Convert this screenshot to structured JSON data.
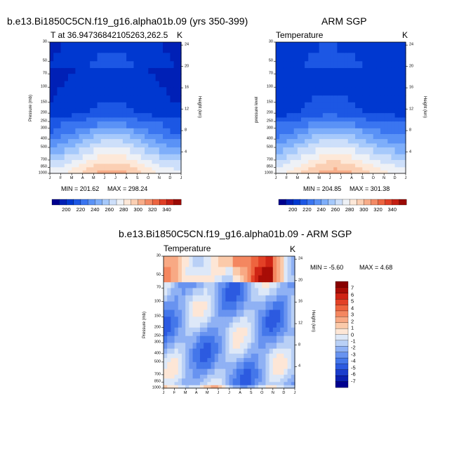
{
  "figure": {
    "title_top_left": "b.e13.Bi1850C5CN.f19_g16.alpha01b.09 (yrs 350-399)",
    "title_top_right": "ARM SGP",
    "title_bottom": "b.e13.Bi1850C5CN.f19_g16.alpha01b.09 - ARM SGP"
  },
  "colors": {
    "temp_scale": [
      "#00008e",
      "#0020b6",
      "#0038d0",
      "#1c57e4",
      "#3a75f0",
      "#5a92f6",
      "#7eaefa",
      "#a6c9fb",
      "#cddffa",
      "#eef1f6",
      "#fde8d8",
      "#fbcfb3",
      "#f8ad89",
      "#f38a65",
      "#ec6440",
      "#df3e25",
      "#c41e12",
      "#9a0a05"
    ],
    "diff_scale": [
      "#00008e",
      "#0a1fb0",
      "#1a3ccc",
      "#2c5ae0",
      "#4477ea",
      "#6893f0",
      "#8fb1f4",
      "#b9d0f6",
      "#dde8f8",
      "#fde6d6",
      "#fbcaaa",
      "#f8a984",
      "#f48760",
      "#ee643e",
      "#e34126",
      "#cf2414",
      "#a80d06",
      "#880000"
    ]
  },
  "chart_data": [
    {
      "type": "heatmap",
      "title": "T at 36.94736842105263,262.5",
      "units": "K",
      "ylabel": "Pressure (mb)",
      "ylabel_right": "Height (km)",
      "x_ticks": [
        "J",
        "F",
        "M",
        "A",
        "M",
        "J",
        "J",
        "A",
        "S",
        "O",
        "N",
        "D",
        "J"
      ],
      "y_ticks": [
        "30",
        "50",
        "70",
        "100",
        "150",
        "200",
        "250",
        "300",
        "400",
        "500",
        "700",
        "850",
        "1000"
      ],
      "y_ticks_right": [
        "24",
        "20",
        "16",
        "12",
        "8",
        "4"
      ],
      "min_label": "MIN = 201.62",
      "max_label": "MAX = 298.24",
      "colorbar_labels": [
        "200",
        "220",
        "240",
        "260",
        "280",
        "300",
        "320",
        "340"
      ]
    },
    {
      "type": "heatmap",
      "title": "Temperature",
      "units": "K",
      "ylabel": "pressure level",
      "ylabel_right": "Height (km)",
      "x_ticks": [
        "J",
        "F",
        "M",
        "A",
        "M",
        "J",
        "J",
        "A",
        "S",
        "O",
        "N",
        "D",
        "J"
      ],
      "y_ticks": [
        "30",
        "50",
        "70",
        "100",
        "150",
        "200",
        "250",
        "300",
        "400",
        "500",
        "700",
        "850",
        "1000"
      ],
      "y_ticks_right": [
        "24",
        "20",
        "16",
        "12",
        "8",
        "4"
      ],
      "min_label": "MIN = 204.85",
      "max_label": "MAX = 301.38",
      "colorbar_labels": [
        "200",
        "220",
        "240",
        "260",
        "280",
        "300",
        "320",
        "340"
      ]
    },
    {
      "type": "heatmap",
      "title": "Temperature",
      "units": "K",
      "ylabel": "Pressure (mb)",
      "ylabel_right": "Height (km)",
      "x_ticks": [
        "J",
        "F",
        "M",
        "A",
        "M",
        "J",
        "J",
        "A",
        "S",
        "O",
        "N",
        "D",
        "J"
      ],
      "y_ticks": [
        "30",
        "50",
        "70",
        "100",
        "150",
        "200",
        "250",
        "300",
        "400",
        "500",
        "700",
        "850",
        "1000"
      ],
      "y_ticks_right": [
        "24",
        "20",
        "16",
        "12",
        "8",
        "4"
      ],
      "min_label": "MIN =  -5.60",
      "max_label": "MAX =   4.68",
      "colorbar_labels": [
        "7",
        "6",
        "5",
        "4",
        "3",
        "2",
        "1",
        "0",
        "-1",
        "-2",
        "-3",
        "-4",
        "-5",
        "-6",
        "-7"
      ]
    }
  ]
}
